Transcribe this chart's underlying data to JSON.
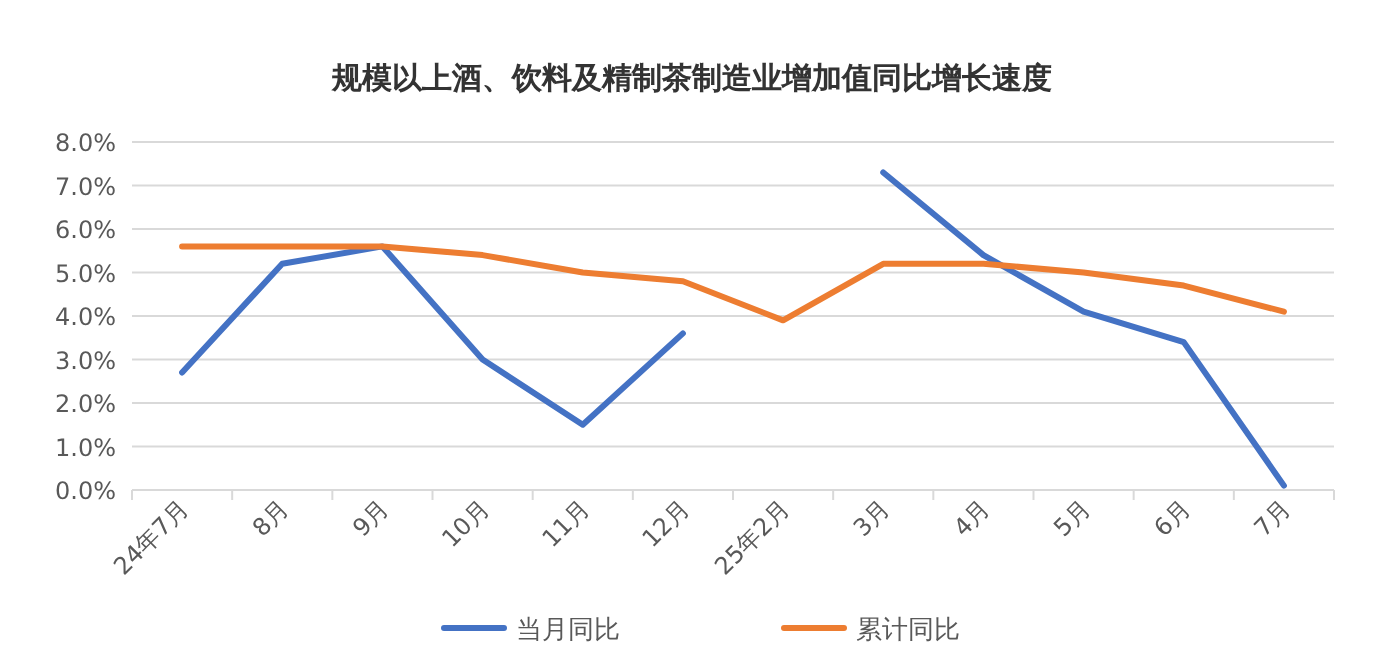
{
  "chart_data": {
    "type": "line",
    "title": "规模以上酒、饮料及精制茶制造业增加值同比增长速度",
    "categories": [
      "24年7月",
      "8月",
      "9月",
      "10月",
      "11月",
      "12月",
      "25年2月",
      "3月",
      "4月",
      "5月",
      "6月",
      "7月"
    ],
    "series": [
      {
        "name": "当月同比",
        "color": "#4472c4",
        "values": [
          2.7,
          5.2,
          5.6,
          3.0,
          1.5,
          3.6,
          null,
          7.3,
          5.4,
          4.1,
          3.4,
          0.1
        ]
      },
      {
        "name": "累计同比",
        "color": "#ed7d31",
        "values": [
          5.6,
          5.6,
          5.6,
          5.4,
          5.0,
          4.8,
          3.9,
          5.2,
          5.2,
          5.0,
          4.7,
          4.1
        ]
      }
    ],
    "ylim": [
      0,
      8
    ],
    "yticks": [
      {
        "value": 0,
        "label": "0.0%"
      },
      {
        "value": 1,
        "label": "1.0%"
      },
      {
        "value": 2,
        "label": "2.0%"
      },
      {
        "value": 3,
        "label": "3.0%"
      },
      {
        "value": 4,
        "label": "4.0%"
      },
      {
        "value": 5,
        "label": "5.0%"
      },
      {
        "value": 6,
        "label": "6.0%"
      },
      {
        "value": 7,
        "label": "7.0%"
      },
      {
        "value": 8,
        "label": "8.0%"
      }
    ],
    "grid": "y",
    "legend": "bottom",
    "marker": "none",
    "line_style": "solid"
  }
}
